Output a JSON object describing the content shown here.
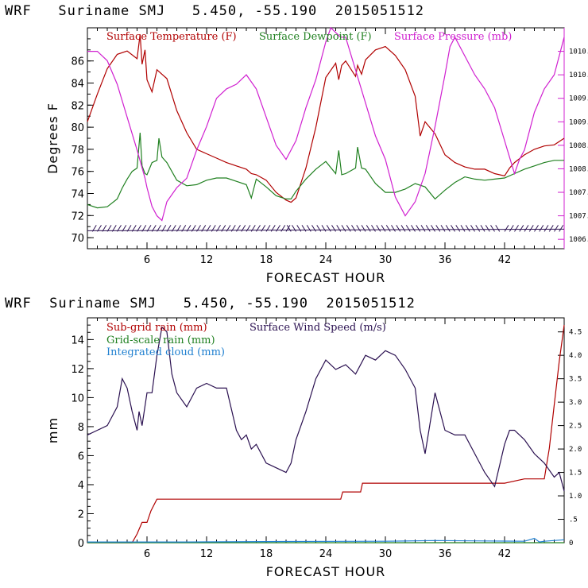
{
  "header": {
    "top": "WRF   Suriname SMJ   5.450, -55.190  2015051512",
    "bottom": "WRF  Suriname SMJ   5.450, -55.190  2015051512"
  },
  "chart_data": [
    {
      "type": "line",
      "title": "WRF Suriname SMJ 5.450, -55.190 2015051512",
      "xlabel": "FORECAST HOUR",
      "ylabel": "Degrees F",
      "xlim": [
        0,
        48
      ],
      "ylim": [
        69,
        89
      ],
      "xticks": [
        6,
        12,
        18,
        24,
        30,
        36,
        42
      ],
      "yticks": [
        70,
        72,
        74,
        76,
        78,
        80,
        82,
        84,
        86
      ],
      "y2label": "Surface Pressure (mb)",
      "y2lim": [
        1006.3,
        1011.0
      ],
      "y2ticks": [
        "1006.5",
        "1007.0",
        "1007.5",
        "1008.0",
        "1008.5",
        "1009.0",
        "1009.5",
        "1010.0",
        "1010.5"
      ],
      "y2tick_values": [
        1006.5,
        1007.0,
        1007.5,
        1008.0,
        1008.5,
        1009.0,
        1009.5,
        1010.0,
        1010.5
      ],
      "colors": {
        "temperature": "#b00000",
        "dewpoint": "#208020",
        "pressure": "#d020d0",
        "wind_barbs": "#2a1050"
      },
      "legend": [
        "Surface Temperature (F)",
        "Surface Dewpoint (F)",
        "Surface Pressure (mb)"
      ],
      "series": [
        {
          "name": "Surface Temperature (F)",
          "axis": "left",
          "x": [
            0,
            1,
            2,
            3,
            4,
            5,
            5.3,
            5.5,
            5.8,
            6,
            6.5,
            7,
            7.5,
            8,
            9,
            10,
            11,
            12,
            13,
            14,
            15,
            16,
            16.5,
            17,
            18,
            19,
            20,
            20.5,
            21,
            22,
            23,
            24,
            25,
            25.3,
            25.6,
            26,
            27,
            27.2,
            27.6,
            28,
            29,
            30,
            31,
            32,
            33,
            33.5,
            34,
            35,
            36,
            37,
            38,
            39,
            40,
            41,
            42,
            42.5,
            43,
            44,
            45,
            46,
            47,
            48
          ],
          "y": [
            80.5,
            83,
            85.3,
            86.6,
            86.9,
            86.2,
            88.4,
            85.7,
            87,
            84.3,
            83.2,
            85.2,
            84.8,
            84.4,
            81.5,
            79.5,
            78,
            77.6,
            77.2,
            76.8,
            76.5,
            76.2,
            75.8,
            75.7,
            75.2,
            74.1,
            73.4,
            73.2,
            73.6,
            76.3,
            80,
            84.5,
            85.8,
            84.3,
            85.6,
            86,
            84.6,
            85.6,
            84.8,
            86.1,
            87,
            87.3,
            86.5,
            85.2,
            82.8,
            79.2,
            80.5,
            79.4,
            77.5,
            76.8,
            76.4,
            76.2,
            76.2,
            75.8,
            75.6,
            76.3,
            76.8,
            77.5,
            78,
            78.3,
            78.4,
            79
          ]
        },
        {
          "name": "Surface Dewpoint (F)",
          "axis": "left",
          "x": [
            0,
            1,
            2,
            3,
            3.5,
            4,
            4.5,
            5,
            5.3,
            5.5,
            5.8,
            6,
            6.5,
            7,
            7.2,
            7.5,
            8,
            9,
            10,
            11,
            12,
            13,
            14,
            15,
            16,
            16.5,
            17,
            18,
            19,
            20,
            20.5,
            21,
            22,
            23,
            24,
            25,
            25.3,
            25.6,
            26,
            27,
            27.2,
            27.6,
            28,
            29,
            30,
            31,
            32,
            33,
            34,
            35,
            36,
            37,
            38,
            39,
            40,
            41,
            42,
            43,
            44,
            45,
            46,
            47,
            48
          ],
          "y": [
            73,
            72.7,
            72.8,
            73.5,
            74.5,
            75.3,
            76,
            76.3,
            79.5,
            76.5,
            75.8,
            75.7,
            76.8,
            77,
            79,
            77.3,
            76.8,
            75.2,
            74.7,
            74.8,
            75.2,
            75.4,
            75.4,
            75.1,
            74.8,
            73.6,
            75.3,
            74.6,
            73.8,
            73.5,
            73.5,
            74.2,
            75.3,
            76.2,
            76.9,
            75.8,
            77.9,
            75.7,
            75.8,
            76.3,
            78.2,
            76.3,
            76.2,
            74.9,
            74.1,
            74.1,
            74.4,
            74.9,
            74.6,
            73.5,
            74.3,
            75,
            75.5,
            75.3,
            75.2,
            75.3,
            75.4,
            75.8,
            76.2,
            76.5,
            76.8,
            77,
            77
          ]
        },
        {
          "name": "Surface Pressure (mb)",
          "axis": "right",
          "x": [
            0,
            1,
            2,
            3,
            4,
            5,
            5.8,
            6,
            6.5,
            7,
            7.5,
            8,
            9,
            10,
            11,
            12,
            13,
            14,
            15,
            16,
            17,
            18,
            19,
            20,
            21,
            22,
            23,
            24,
            24.5,
            25,
            25.5,
            26,
            27,
            28,
            29,
            30,
            31,
            32,
            33,
            34,
            35,
            36,
            36.5,
            37,
            38,
            39,
            40,
            41,
            42,
            43,
            43.5,
            44,
            45,
            46,
            47,
            48
          ],
          "y": [
            1010.5,
            1010.5,
            1010.3,
            1009.8,
            1009.1,
            1008.4,
            1007.8,
            1007.6,
            1007.2,
            1007.0,
            1006.9,
            1007.3,
            1007.6,
            1007.8,
            1008.4,
            1008.9,
            1009.5,
            1009.7,
            1009.8,
            1010.0,
            1009.7,
            1009.1,
            1008.5,
            1008.2,
            1008.6,
            1009.3,
            1009.9,
            1010.7,
            1011.0,
            1010.9,
            1010.8,
            1010.8,
            1010.1,
            1009.4,
            1008.7,
            1008.2,
            1007.4,
            1007.0,
            1007.3,
            1007.9,
            1008.9,
            1010.0,
            1010.6,
            1010.8,
            1010.4,
            1010.0,
            1009.7,
            1009.3,
            1008.6,
            1007.9,
            1008.2,
            1008.4,
            1009.2,
            1009.7,
            1010.0,
            1010.8
          ]
        }
      ],
      "wind_barbs": {
        "y": 70.7,
        "note": "Wind barbs drawn along bottom of panel at ~70.7 F level"
      }
    },
    {
      "type": "line",
      "title": "WRF Suriname SMJ 5.450, -55.190 2015051512",
      "xlabel": "FORECAST HOUR",
      "ylabel": "mm",
      "xlim": [
        0,
        48
      ],
      "ylim": [
        0,
        15.5
      ],
      "xticks": [
        6,
        12,
        18,
        24,
        30,
        36,
        42
      ],
      "yticks": [
        0,
        2,
        4,
        6,
        8,
        10,
        12,
        14
      ],
      "y2label": "Surface Wind Speed (m/s)",
      "y2lim": [
        0,
        4.8
      ],
      "y2ticks": [
        "0",
        ".5",
        "1.0",
        "1.5",
        "2.0",
        "2.5",
        "3.0",
        "3.5",
        "4.0",
        "4.5"
      ],
      "y2tick_values": [
        0,
        0.5,
        1.0,
        1.5,
        2.0,
        2.5,
        3.0,
        3.5,
        4.0,
        4.5
      ],
      "colors": {
        "subgrid_rain": "#b00000",
        "gridscale_rain": "#208020",
        "cloud": "#2080d0",
        "wind_speed": "#2a1050"
      },
      "legend": [
        "Sub-grid rain (mm)",
        "Grid-scale rain (mm)",
        "Integrated cloud (mm)",
        "Surface Wind Speed (m/s)"
      ],
      "series": [
        {
          "name": "Sub-grid rain (mm)",
          "axis": "left",
          "x": [
            0,
            4,
            4.5,
            5,
            5.5,
            5.6,
            6,
            6.4,
            7,
            8,
            12,
            18,
            24,
            25.5,
            25.7,
            27.5,
            27.7,
            30,
            36,
            42,
            44,
            46,
            46.5,
            47,
            47.5,
            48
          ],
          "y": [
            0,
            0,
            0,
            0.6,
            1.4,
            1.4,
            1.4,
            2.2,
            3,
            3,
            3,
            3,
            3,
            3,
            3.5,
            3.5,
            4.1,
            4.1,
            4.1,
            4.1,
            4.4,
            4.4,
            6.5,
            9.5,
            12.5,
            15
          ]
        },
        {
          "name": "Grid-scale rain (mm)",
          "axis": "left",
          "x": [
            0,
            48
          ],
          "y": [
            0,
            0
          ]
        },
        {
          "name": "Integrated cloud (mm)",
          "axis": "left",
          "x": [
            0,
            10,
            20,
            30,
            35,
            40,
            44,
            45,
            45.5,
            46,
            48
          ],
          "y": [
            0.05,
            0.05,
            0.08,
            0.1,
            0.15,
            0.12,
            0.1,
            0.3,
            0.05,
            0.1,
            0.2
          ]
        },
        {
          "name": "Surface Wind Speed (m/s)",
          "axis": "right",
          "x": [
            0,
            1,
            2,
            3,
            3.5,
            4,
            4.5,
            5,
            5.2,
            5.5,
            6,
            6.5,
            7,
            7.5,
            8,
            8.5,
            9,
            10,
            11,
            12,
            13,
            14,
            15,
            15.5,
            16,
            16.5,
            17,
            18,
            19,
            20,
            20.5,
            21,
            22,
            23,
            24,
            25,
            26,
            27,
            28,
            29,
            30,
            31,
            32,
            33,
            33.5,
            34,
            35,
            36,
            37,
            38,
            39,
            40,
            41,
            42,
            42.5,
            43,
            44,
            45,
            46,
            47,
            47.5,
            48
          ],
          "y": [
            2.3,
            2.4,
            2.5,
            2.9,
            3.5,
            3.3,
            2.8,
            2.4,
            2.8,
            2.5,
            3.2,
            3.2,
            4.0,
            4.6,
            4.5,
            3.6,
            3.2,
            2.9,
            3.3,
            3.4,
            3.3,
            3.3,
            2.4,
            2.2,
            2.3,
            2.0,
            2.1,
            1.7,
            1.6,
            1.5,
            1.7,
            2.2,
            2.8,
            3.5,
            3.9,
            3.7,
            3.8,
            3.6,
            4.0,
            3.9,
            4.1,
            4.0,
            3.7,
            3.3,
            2.4,
            1.9,
            3.2,
            2.4,
            2.3,
            2.3,
            1.9,
            1.5,
            1.2,
            2.1,
            2.4,
            2.4,
            2.2,
            1.9,
            1.7,
            1.4,
            1.5,
            1.1
          ]
        }
      ]
    }
  ]
}
